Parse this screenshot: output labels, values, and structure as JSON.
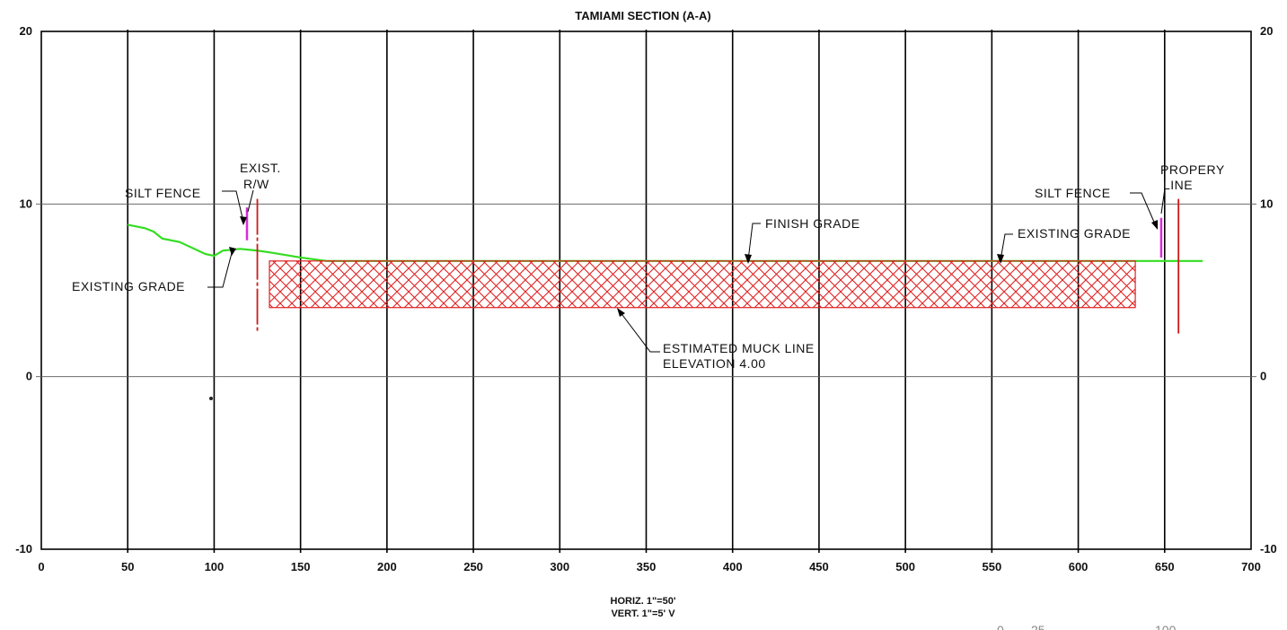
{
  "title": "TAMIAMI SECTION (A-A)",
  "axes": {
    "x_ticks": [
      0,
      50,
      100,
      150,
      200,
      250,
      300,
      350,
      400,
      450,
      500,
      550,
      600,
      650,
      700
    ],
    "y_ticks": [
      20,
      10,
      0,
      -10
    ],
    "x_range": [
      0,
      700
    ],
    "y_range": [
      -10,
      20
    ]
  },
  "colors": {
    "grade_line": "#33dd22",
    "muck_hatch": "#e02020",
    "silt_fence": "#d92bd9",
    "row_line": "#cc1b1b",
    "grid": "#000000"
  },
  "annotations": {
    "silt_fence_left": "SILT FENCE",
    "exist_rw_line1": "EXIST.",
    "exist_rw_line2": "R/W",
    "existing_grade_left": "EXISTING GRADE",
    "finish_grade": "FINISH GRADE",
    "existing_grade_right": "EXISTING GRADE",
    "silt_fence_right": "SILT FENCE",
    "property_line1": "PROPERY",
    "property_line2": "LINE",
    "muck_line1": "ESTIMATED MUCK LINE",
    "muck_line2": "ELEVATION 4.00"
  },
  "scale": {
    "horiz": "HORIZ. 1\"=50'",
    "vert": "VERT. 1\"=5' V"
  },
  "footer_fragments": [
    "0",
    "25",
    "100"
  ],
  "section": {
    "existing_grade_profile": [
      [
        50,
        8.8
      ],
      [
        60,
        8.6
      ],
      [
        65,
        8.4
      ],
      [
        70,
        8.0
      ],
      [
        80,
        7.8
      ],
      [
        95,
        7.1
      ],
      [
        100,
        7.0
      ],
      [
        105,
        7.3
      ],
      [
        115,
        7.4
      ],
      [
        125,
        7.3
      ],
      [
        132,
        7.2
      ],
      [
        150,
        6.9
      ],
      [
        165,
        6.7
      ],
      [
        200,
        6.7
      ],
      [
        400,
        6.7
      ],
      [
        640,
        6.7
      ],
      [
        672,
        6.7
      ]
    ],
    "muck_area": {
      "x_start": 132,
      "x_end": 633,
      "top_elev": 6.7,
      "bottom_elev": 4.0
    },
    "silt_fences": [
      {
        "x": 119,
        "top": 9.8,
        "bottom": 7.9
      },
      {
        "x": 648,
        "top": 9.2,
        "bottom": 6.9
      }
    ],
    "row_lines": [
      {
        "x": 125,
        "top": 10.3,
        "bottom": 2.5,
        "dashed": true
      },
      {
        "x": 658,
        "top": 10.3,
        "bottom": 2.5,
        "dashed": false
      }
    ]
  }
}
